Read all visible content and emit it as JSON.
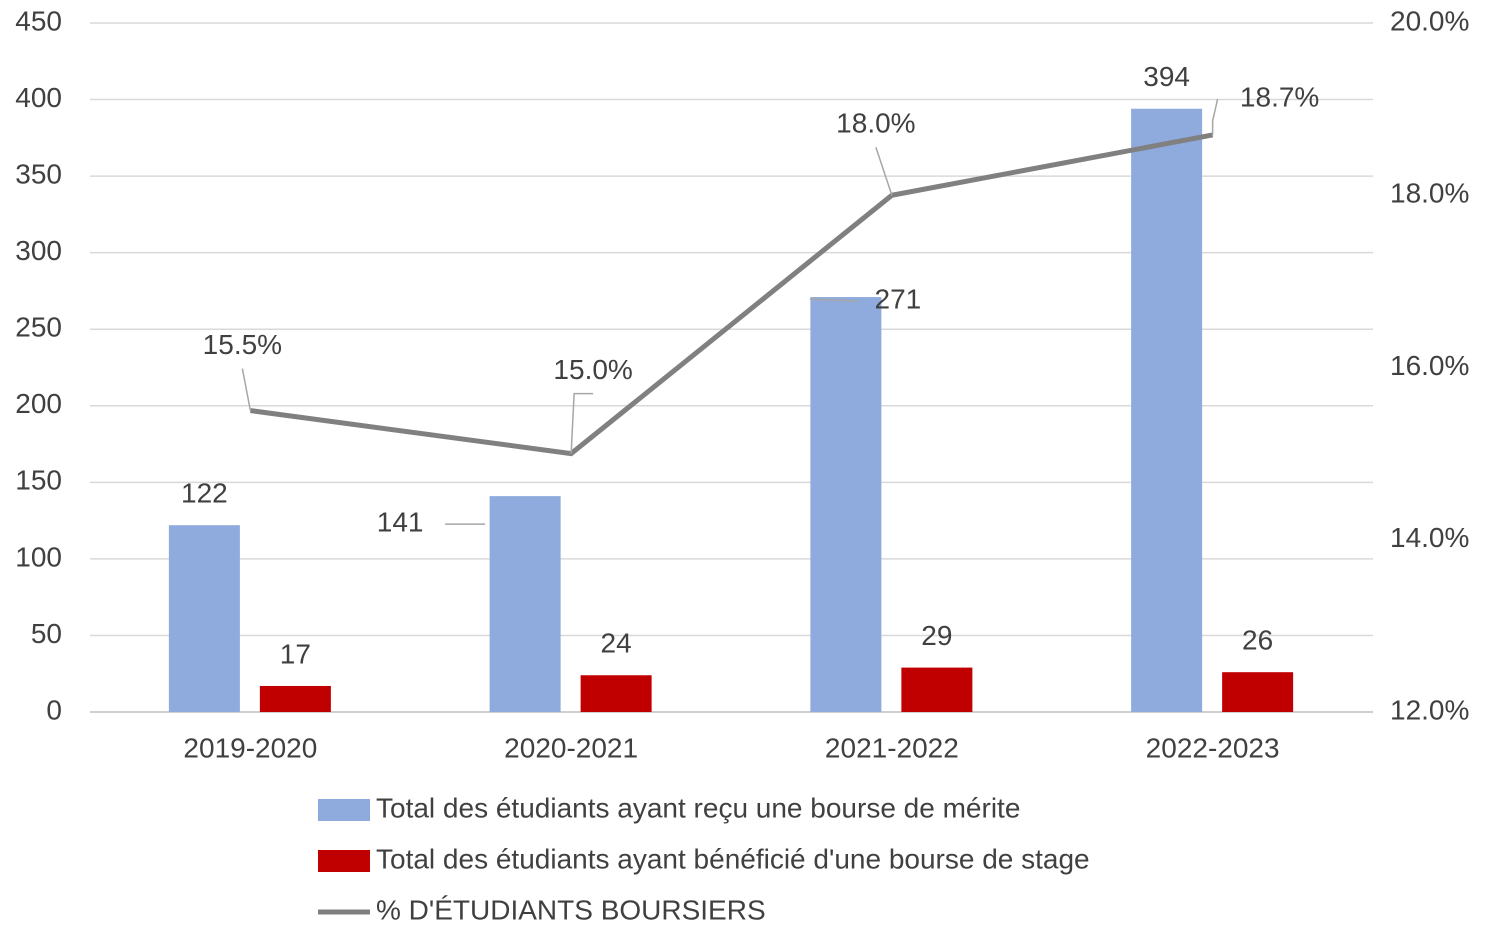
{
  "chart_data": {
    "type": "bar",
    "categories": [
      "2019-2020",
      "2020-2021",
      "2021-2022",
      "2022-2023"
    ],
    "series": [
      {
        "name": "Total des étudiants ayant reçu une bourse de mérite",
        "type": "bar",
        "color": "#8faadc",
        "values": [
          122,
          141,
          271,
          394
        ]
      },
      {
        "name": "Total des étudiants ayant bénéficié d'une bourse de stage",
        "type": "bar",
        "color": "#c00000",
        "values": [
          17,
          24,
          29,
          26
        ]
      },
      {
        "name": "% D'ÉTUDIANTS BOURSIERS",
        "type": "line",
        "axis": "y2",
        "color": "#808080",
        "values": [
          15.5,
          15.0,
          18.0,
          18.7
        ],
        "value_labels": [
          "15.5%",
          "15.0%",
          "18.0%",
          "18.7%"
        ]
      }
    ],
    "ylim": [
      0,
      450
    ],
    "yticks": [
      0,
      50,
      100,
      150,
      200,
      250,
      300,
      350,
      400,
      450
    ],
    "y2lim": [
      12,
      20
    ],
    "y2ticks": [
      {
        "value": 12,
        "label": "12.0%"
      },
      {
        "value": 14,
        "label": "14.0%"
      },
      {
        "value": 16,
        "label": "16.0%"
      },
      {
        "value": 18,
        "label": "18.0%"
      },
      {
        "value": 20,
        "label": "20.0%"
      }
    ],
    "grid": true,
    "legend": "bottom"
  }
}
